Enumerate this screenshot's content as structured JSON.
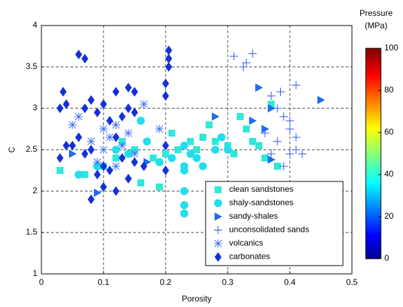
{
  "chart_data": {
    "type": "scatter",
    "xlabel": "Porosity",
    "ylabel": "C",
    "xlim": [
      0,
      0.5
    ],
    "xticks": [
      0,
      0.1,
      0.2,
      0.3,
      0.4,
      0.5
    ],
    "ylim": [
      1,
      4
    ],
    "yticks": [
      1,
      1.5,
      2,
      2.5,
      3,
      3.5,
      4
    ],
    "grid": true,
    "legend": "lower right",
    "colorbar": {
      "title": [
        "Pressure",
        "(MPa)"
      ],
      "colormap": "jet",
      "lim": [
        0,
        100
      ],
      "ticks": [
        0,
        20,
        40,
        60,
        80,
        100
      ]
    },
    "series": [
      {
        "name": "clean sandstones",
        "marker": "square",
        "color": "#2ee8d8",
        "x": [
          0.03,
          0.07,
          0.1,
          0.12,
          0.15,
          0.16,
          0.18,
          0.2,
          0.21,
          0.22,
          0.24,
          0.25,
          0.26,
          0.27,
          0.28,
          0.3,
          0.31,
          0.32,
          0.33,
          0.34,
          0.35,
          0.36,
          0.37,
          0.38,
          0.19,
          0.13
        ],
        "y": [
          2.25,
          2.2,
          2.3,
          2.4,
          2.5,
          2.1,
          2.4,
          2.45,
          2.7,
          2.5,
          2.6,
          2.5,
          2.65,
          2.8,
          2.6,
          2.55,
          2.45,
          2.9,
          2.75,
          2.6,
          2.55,
          2.4,
          3.05,
          2.3,
          2.05,
          2.6
        ]
      },
      {
        "name": "shaly-sandstones",
        "marker": "circle",
        "color": "#22ddee",
        "x": [
          0.06,
          0.09,
          0.12,
          0.14,
          0.16,
          0.17,
          0.19,
          0.21,
          0.23,
          0.23,
          0.24,
          0.25,
          0.26,
          0.28,
          0.29,
          0.3,
          0.23,
          0.23,
          0.23,
          0.23
        ],
        "y": [
          2.2,
          2.3,
          2.5,
          2.45,
          2.85,
          2.6,
          2.35,
          2.4,
          2.55,
          2.3,
          2.45,
          2.4,
          2.3,
          2.5,
          2.65,
          2.5,
          2.0,
          1.83,
          1.73,
          2.25
        ]
      },
      {
        "name": "sandy-shales",
        "marker": "triangle-right",
        "color": "#1e6cf0",
        "x": [
          0.05,
          0.09,
          0.17,
          0.35,
          0.36,
          0.37,
          0.37,
          0.45,
          0.34,
          0.28
        ],
        "y": [
          2.45,
          1.98,
          2.35,
          3.25,
          2.75,
          3.0,
          2.38,
          3.1,
          2.85,
          2.9
        ]
      },
      {
        "name": "unconsolidated sands",
        "marker": "plus",
        "color": "#2a4ff5",
        "x": [
          0.31,
          0.325,
          0.33,
          0.34,
          0.41,
          0.37,
          0.38,
          0.39,
          0.4,
          0.41,
          0.4,
          0.41,
          0.38,
          0.39,
          0.36,
          0.4,
          0.42,
          0.37,
          0.385
        ],
        "y": [
          3.63,
          3.5,
          3.55,
          3.66,
          3.28,
          3.15,
          3.0,
          2.9,
          2.75,
          2.65,
          2.45,
          2.5,
          2.6,
          2.3,
          2.7,
          2.85,
          2.45,
          2.45,
          3.2
        ]
      },
      {
        "name": "volcanics",
        "marker": "star",
        "color": "#3a6ef0",
        "x": [
          0.05,
          0.06,
          0.08,
          0.1,
          0.11,
          0.12,
          0.13,
          0.14,
          0.15,
          0.165,
          0.19,
          0.12,
          0.09,
          0.1
        ],
        "y": [
          2.8,
          2.9,
          2.6,
          2.75,
          2.65,
          2.8,
          2.55,
          2.7,
          2.45,
          3.05,
          2.75,
          2.3,
          2.35,
          2.5
        ]
      },
      {
        "name": "carbonates",
        "marker": "diamond",
        "color": "#1530d8",
        "x": [
          0.03,
          0.035,
          0.04,
          0.05,
          0.06,
          0.07,
          0.07,
          0.07,
          0.08,
          0.08,
          0.09,
          0.09,
          0.1,
          0.1,
          0.1,
          0.11,
          0.11,
          0.12,
          0.12,
          0.12,
          0.13,
          0.13,
          0.14,
          0.14,
          0.15,
          0.15,
          0.08,
          0.165,
          0.2,
          0.2,
          0.205,
          0.205,
          0.205,
          0.2,
          0.2,
          0.06,
          0.03,
          0.04,
          0.14,
          0.15
        ],
        "y": [
          3.0,
          3.2,
          3.05,
          2.55,
          2.65,
          2.45,
          3.0,
          3.6,
          2.5,
          3.1,
          2.95,
          2.2,
          3.05,
          2.3,
          2.05,
          2.25,
          2.85,
          3.2,
          2.0,
          2.65,
          2.9,
          2.4,
          3.25,
          2.15,
          2.35,
          2.95,
          1.9,
          2.3,
          2.25,
          2.55,
          3.7,
          3.6,
          3.5,
          3.15,
          3.3,
          3.65,
          2.4,
          2.55,
          3.0,
          3.2
        ]
      }
    ]
  }
}
